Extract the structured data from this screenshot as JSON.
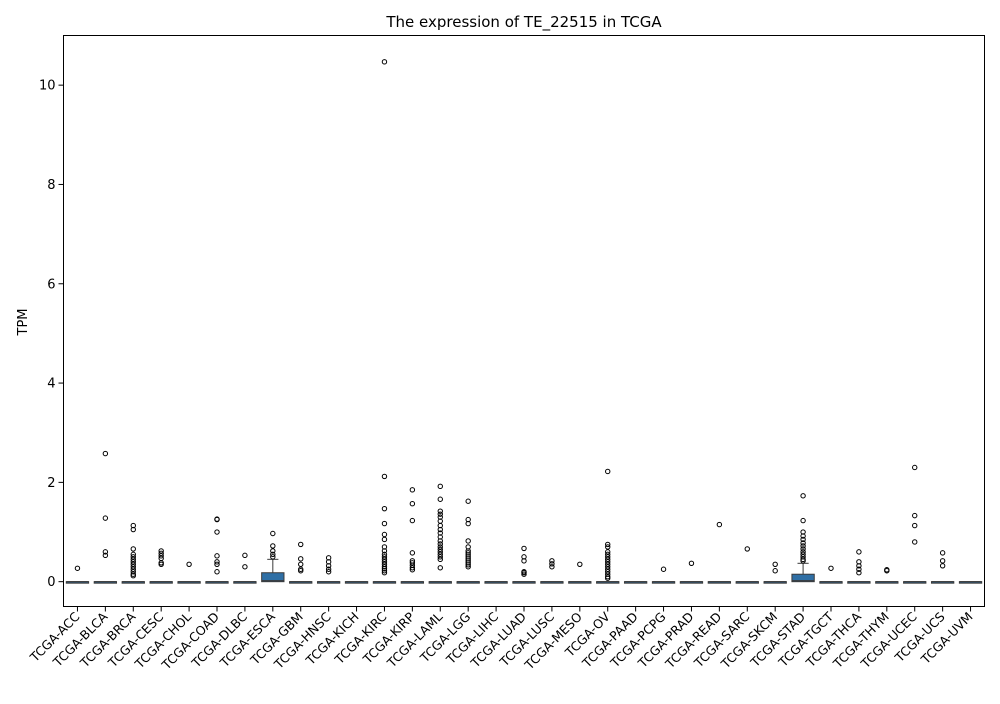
{
  "chart_data": {
    "type": "box",
    "title": "The expression of TE_22515 in TCGA",
    "xlabel": "",
    "ylabel": "TPM",
    "ylim": [
      -0.5,
      11.0
    ],
    "yticks": [
      0,
      2,
      4,
      6,
      8,
      10
    ],
    "grid": false,
    "box_color": "#2f6fa5",
    "categories": [
      "TCGA-ACC",
      "TCGA-BLCA",
      "TCGA-BRCA",
      "TCGA-CESC",
      "TCGA-CHOL",
      "TCGA-COAD",
      "TCGA-DLBC",
      "TCGA-ESCA",
      "TCGA-GBM",
      "TCGA-HNSC",
      "TCGA-KICH",
      "TCGA-KIRC",
      "TCGA-KIRP",
      "TCGA-LAML",
      "TCGA-LGG",
      "TCGA-LIHC",
      "TCGA-LUAD",
      "TCGA-LUSC",
      "TCGA-MESO",
      "TCGA-OV",
      "TCGA-PAAD",
      "TCGA-PCPG",
      "TCGA-PRAD",
      "TCGA-READ",
      "TCGA-SARC",
      "TCGA-SKCM",
      "TCGA-STAD",
      "TCGA-TGCT",
      "TCGA-THCA",
      "TCGA-THYM",
      "TCGA-UCEC",
      "TCGA-UCS",
      "TCGA-UVM"
    ],
    "boxes": [
      {
        "q1": 0,
        "median": 0,
        "q3": 0,
        "whisker_low": 0,
        "whisker_high": 0,
        "outliers": [
          0.27
        ]
      },
      {
        "q1": 0,
        "median": 0,
        "q3": 0,
        "whisker_low": 0,
        "whisker_high": 0,
        "outliers": [
          2.58,
          1.28,
          0.6,
          0.53
        ]
      },
      {
        "q1": 0,
        "median": 0,
        "q3": 0,
        "whisker_low": 0,
        "whisker_high": 0,
        "outliers": [
          1.13,
          1.05,
          0.66,
          0.55,
          0.5,
          0.45,
          0.4,
          0.35,
          0.3,
          0.25,
          0.2,
          0.15,
          0.12
        ]
      },
      {
        "q1": 0,
        "median": 0,
        "q3": 0,
        "whisker_low": 0,
        "whisker_high": 0,
        "outliers": [
          0.62,
          0.57,
          0.52,
          0.47,
          0.38,
          0.35
        ]
      },
      {
        "q1": 0,
        "median": 0,
        "q3": 0,
        "whisker_low": 0,
        "whisker_high": 0,
        "outliers": [
          0.35
        ]
      },
      {
        "q1": 0,
        "median": 0,
        "q3": 0,
        "whisker_low": 0,
        "whisker_high": 0,
        "outliers": [
          1.26,
          1.25,
          1.0,
          0.52,
          0.4,
          0.35,
          0.2
        ]
      },
      {
        "q1": 0,
        "median": 0,
        "q3": 0,
        "whisker_low": 0,
        "whisker_high": 0,
        "outliers": [
          0.53,
          0.3
        ]
      },
      {
        "q1": 0,
        "median": 0.02,
        "q3": 0.18,
        "whisker_low": 0,
        "whisker_high": 0.45,
        "outliers": [
          0.97,
          0.72,
          0.62,
          0.55,
          0.5
        ]
      },
      {
        "q1": 0,
        "median": 0,
        "q3": 0,
        "whisker_low": 0,
        "whisker_high": 0,
        "outliers": [
          0.75,
          0.46,
          0.35,
          0.25,
          0.22
        ]
      },
      {
        "q1": 0,
        "median": 0,
        "q3": 0,
        "whisker_low": 0,
        "whisker_high": 0,
        "outliers": [
          0.48,
          0.4,
          0.32,
          0.25,
          0.2
        ]
      },
      {
        "q1": 0,
        "median": 0,
        "q3": 0,
        "whisker_low": 0,
        "whisker_high": 0,
        "outliers": []
      },
      {
        "q1": 0,
        "median": 0,
        "q3": 0,
        "whisker_low": 0,
        "whisker_high": 0,
        "outliers": [
          10.47,
          2.12,
          1.47,
          1.17,
          0.95,
          0.85,
          0.7,
          0.62,
          0.55,
          0.5,
          0.45,
          0.4,
          0.35,
          0.3,
          0.26,
          0.22,
          0.18
        ]
      },
      {
        "q1": 0,
        "median": 0,
        "q3": 0,
        "whisker_low": 0,
        "whisker_high": 0,
        "outliers": [
          1.85,
          1.57,
          1.23,
          0.58,
          0.42,
          0.38,
          0.33,
          0.28,
          0.24
        ]
      },
      {
        "q1": 0,
        "median": 0,
        "q3": 0,
        "whisker_low": 0,
        "whisker_high": 0,
        "outliers": [
          1.92,
          1.66,
          1.42,
          1.36,
          1.3,
          1.22,
          1.13,
          1.05,
          0.98,
          0.9,
          0.82,
          0.76,
          0.7,
          0.65,
          0.6,
          0.55,
          0.5,
          0.45,
          0.28
        ]
      },
      {
        "q1": 0,
        "median": 0,
        "q3": 0,
        "whisker_low": 0,
        "whisker_high": 0,
        "outliers": [
          1.62,
          1.25,
          1.17,
          0.82,
          0.7,
          0.62,
          0.58,
          0.54,
          0.5,
          0.46,
          0.42,
          0.38,
          0.34,
          0.3
        ]
      },
      {
        "q1": 0,
        "median": 0,
        "q3": 0,
        "whisker_low": 0,
        "whisker_high": 0,
        "outliers": []
      },
      {
        "q1": 0,
        "median": 0,
        "q3": 0,
        "whisker_low": 0,
        "whisker_high": 0,
        "outliers": [
          0.67,
          0.5,
          0.42,
          0.2,
          0.18,
          0.15
        ]
      },
      {
        "q1": 0,
        "median": 0,
        "q3": 0,
        "whisker_low": 0,
        "whisker_high": 0,
        "outliers": [
          0.42,
          0.36,
          0.3
        ]
      },
      {
        "q1": 0,
        "median": 0,
        "q3": 0,
        "whisker_low": 0,
        "whisker_high": 0,
        "outliers": [
          0.35
        ]
      },
      {
        "q1": 0,
        "median": 0,
        "q3": 0,
        "whisker_low": 0,
        "whisker_high": 0,
        "outliers": [
          2.22,
          0.75,
          0.7,
          0.6,
          0.55,
          0.5,
          0.45,
          0.4,
          0.35,
          0.3,
          0.25,
          0.2,
          0.15,
          0.1,
          0.07
        ]
      },
      {
        "q1": 0,
        "median": 0,
        "q3": 0,
        "whisker_low": 0,
        "whisker_high": 0,
        "outliers": []
      },
      {
        "q1": 0,
        "median": 0,
        "q3": 0,
        "whisker_low": 0,
        "whisker_high": 0,
        "outliers": [
          0.25
        ]
      },
      {
        "q1": 0,
        "median": 0,
        "q3": 0,
        "whisker_low": 0,
        "whisker_high": 0,
        "outliers": [
          0.37
        ]
      },
      {
        "q1": 0,
        "median": 0,
        "q3": 0,
        "whisker_low": 0,
        "whisker_high": 0,
        "outliers": [
          1.15
        ]
      },
      {
        "q1": 0,
        "median": 0,
        "q3": 0,
        "whisker_low": 0,
        "whisker_high": 0,
        "outliers": [
          0.66
        ]
      },
      {
        "q1": 0,
        "median": 0,
        "q3": 0,
        "whisker_low": 0,
        "whisker_high": 0,
        "outliers": [
          0.35,
          0.22
        ]
      },
      {
        "q1": 0,
        "median": 0.02,
        "q3": 0.15,
        "whisker_low": 0,
        "whisker_high": 0.37,
        "outliers": [
          1.73,
          1.23,
          1.0,
          0.92,
          0.85,
          0.78,
          0.72,
          0.66,
          0.6,
          0.55,
          0.5,
          0.45,
          0.42
        ]
      },
      {
        "q1": 0,
        "median": 0,
        "q3": 0,
        "whisker_low": 0,
        "whisker_high": 0,
        "outliers": [
          0.27
        ]
      },
      {
        "q1": 0,
        "median": 0,
        "q3": 0,
        "whisker_low": 0,
        "whisker_high": 0,
        "outliers": [
          0.6,
          0.4,
          0.32,
          0.25,
          0.18
        ]
      },
      {
        "q1": 0,
        "median": 0,
        "q3": 0,
        "whisker_low": 0,
        "whisker_high": 0,
        "outliers": [
          0.24,
          0.22
        ]
      },
      {
        "q1": 0,
        "median": 0,
        "q3": 0,
        "whisker_low": 0,
        "whisker_high": 0,
        "outliers": [
          2.3,
          1.33,
          1.13,
          0.8
        ]
      },
      {
        "q1": 0,
        "median": 0,
        "q3": 0,
        "whisker_low": 0,
        "whisker_high": 0,
        "outliers": [
          0.58,
          0.42,
          0.32
        ]
      },
      {
        "q1": 0,
        "median": 0,
        "q3": 0,
        "whisker_low": 0,
        "whisker_high": 0,
        "outliers": []
      }
    ]
  }
}
